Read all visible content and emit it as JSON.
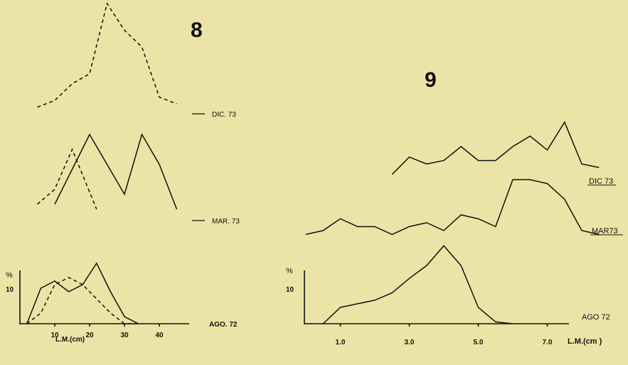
{
  "chart_data": [
    {
      "type": "line",
      "panel_number": "8",
      "title": "",
      "xlabel": "L.M.(cm)",
      "ylabel": "%",
      "ylim": [
        0,
        20
      ],
      "x_ticks": [
        10,
        20,
        30,
        40
      ],
      "y_ticks": [
        10
      ],
      "y_tick_labels": [
        "10"
      ],
      "groups": [
        {
          "label": "AGO. 72",
          "offset_label": "",
          "series": [
            {
              "style": "solid",
              "x": [
                2,
                6,
                10,
                14,
                18,
                22,
                26,
                30,
                34
              ],
              "y": [
                0,
                10,
                12,
                9,
                11,
                17,
                9,
                2,
                0
              ]
            },
            {
              "style": "dashed",
              "x": [
                2,
                6,
                10,
                14,
                18,
                22,
                26,
                30,
                34
              ],
              "y": [
                0,
                3,
                11,
                13,
                11,
                7,
                3,
                0,
                0
              ]
            }
          ]
        },
        {
          "label": "MAR. 73",
          "series": [
            {
              "style": "solid",
              "x": [
                10,
                20,
                30,
                35,
                40,
                45
              ],
              "y": [
                3,
                17,
                5,
                17,
                11,
                2
              ]
            },
            {
              "style": "dashed",
              "x": [
                5,
                10,
                15,
                22
              ],
              "y": [
                3,
                6,
                14,
                2
              ]
            }
          ]
        },
        {
          "label": "DIC. 73",
          "series": [
            {
              "style": "dashed",
              "x": [
                5,
                10,
                15,
                20,
                25,
                30,
                35,
                40,
                45
              ],
              "y": [
                2,
                4,
                9,
                12,
                33,
                25,
                20,
                5,
                3
              ]
            }
          ]
        }
      ]
    },
    {
      "type": "line",
      "panel_number": "9",
      "title": "",
      "xlabel": "L.M.(cm )",
      "ylabel": "%",
      "ylim": [
        0,
        16
      ],
      "x_ticks": [
        1.0,
        3.0,
        5.0,
        7.0
      ],
      "x_tick_labels": [
        "1.0",
        "3.0",
        "5.0",
        "7.0"
      ],
      "y_ticks": [
        10
      ],
      "y_tick_labels": [
        "10"
      ],
      "groups": [
        {
          "label": "AGO 72",
          "series": [
            {
              "style": "solid",
              "x": [
                0.5,
                1.0,
                1.5,
                2.0,
                2.5,
                3.0,
                3.5,
                4.0,
                4.5,
                5.0,
                5.5,
                6.0
              ],
              "y": [
                0,
                4.5,
                5.5,
                6.5,
                8.5,
                12.5,
                16,
                21.5,
                16,
                4.5,
                0.5,
                0
              ]
            }
          ]
        },
        {
          "label": "MAR73",
          "series": [
            {
              "style": "solid",
              "x": [
                0,
                0.5,
                1.0,
                1.5,
                2.0,
                2.5,
                3.0,
                3.5,
                4.0,
                4.5,
                5.0,
                5.5,
                6.0,
                6.5,
                7.0,
                7.5,
                8.0,
                8.5
              ],
              "y": [
                1,
                2,
                5,
                3,
                3,
                1,
                3,
                4,
                2,
                6,
                5,
                3,
                15,
                15,
                14,
                10,
                2,
                1
              ]
            }
          ]
        },
        {
          "label": "DIC 73",
          "series": [
            {
              "style": "solid",
              "x": [
                2.5,
                3.0,
                3.5,
                4.0,
                4.5,
                5.0,
                5.5,
                6.0,
                6.5,
                7.0,
                7.5,
                8.0,
                8.5
              ],
              "y": [
                2,
                7,
                5,
                6,
                10,
                6,
                6,
                10,
                13,
                9,
                17,
                5,
                4
              ]
            }
          ]
        }
      ]
    }
  ]
}
